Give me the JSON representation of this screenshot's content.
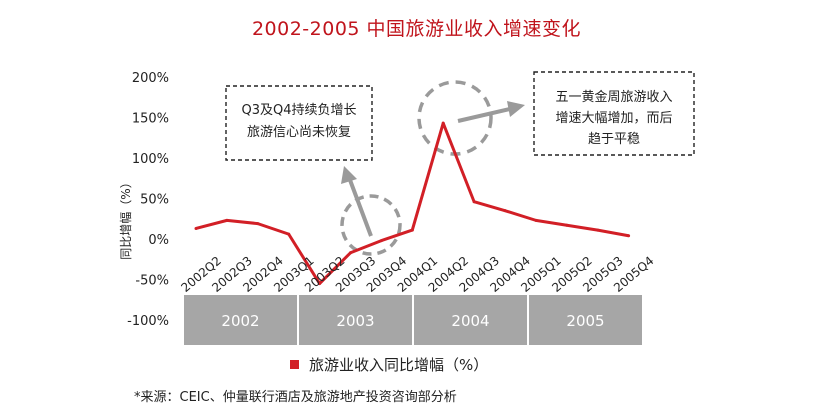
{
  "chart_data": {
    "type": "line",
    "title": "2002-2005 中国旅游业收入增速变化",
    "ylabel": "同比增幅（%）",
    "ylim": [
      -100,
      200
    ],
    "yticks": [
      "200%",
      "150%",
      "100%",
      "50%",
      "0%",
      "-50%",
      "-100%"
    ],
    "categories": [
      "2002Q2",
      "2002Q3",
      "2002Q4",
      "2003Q1",
      "2003Q2",
      "2003Q3",
      "2003Q4",
      "2004Q1",
      "2004Q2",
      "2004Q3",
      "2004Q4",
      "2005Q1",
      "2005Q2",
      "2005Q3",
      "2005Q4"
    ],
    "series": [
      {
        "name": "旅游业收入同比增幅（%）",
        "color": "#d21f26",
        "values": [
          13,
          23,
          19,
          6,
          -55,
          -17,
          -2,
          11,
          143,
          46,
          35,
          23,
          17,
          11,
          4
        ]
      }
    ],
    "years": [
      "2002",
      "2003",
      "2004",
      "2005"
    ],
    "year_box_color": "#a6a6a6",
    "annotations": [
      {
        "lines": [
          "Q3及Q4持续负增长",
          "旅游信心尚未恢复"
        ]
      },
      {
        "lines": [
          "五一黄金周旅游收入",
          "增速大幅增加，而后",
          "趋于平稳"
        ]
      }
    ],
    "grid": false,
    "legend_position": "bottom"
  },
  "source": "*来源：CEIC、仲量联行酒店及旅游地产投资咨询部分析"
}
